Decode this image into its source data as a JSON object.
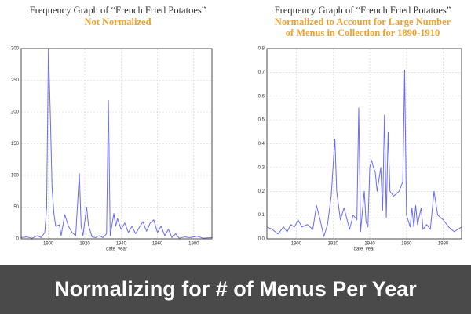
{
  "chart_data": [
    {
      "type": "line",
      "title": "Frequency Graph of “French Fried Potatoes”",
      "subtitle": [
        "Not Normalized"
      ],
      "x_label": "date_year",
      "color": "#6b6bf5",
      "x": [
        1885,
        1888,
        1891,
        1894,
        1896,
        1898,
        1899,
        1900,
        1901,
        1902,
        1903,
        1904,
        1906,
        1907,
        1909,
        1911,
        1913,
        1915,
        1917,
        1918,
        1919,
        1921,
        1922,
        1924,
        1926,
        1928,
        1930,
        1932,
        1933,
        1934,
        1936,
        1937,
        1938,
        1940,
        1942,
        1944,
        1946,
        1948,
        1950,
        1952,
        1954,
        1956,
        1958,
        1960,
        1962,
        1964,
        1966,
        1968,
        1970,
        1972,
        1975,
        1978,
        1982,
        1985,
        1990
      ],
      "values": [
        2,
        3,
        1,
        5,
        2,
        10,
        50,
        300,
        200,
        80,
        40,
        20,
        22,
        5,
        38,
        20,
        10,
        5,
        103,
        20,
        5,
        50,
        22,
        3,
        2,
        5,
        2,
        8,
        218,
        5,
        40,
        20,
        32,
        15,
        25,
        10,
        20,
        8,
        18,
        27,
        12,
        25,
        30,
        10,
        20,
        5,
        15,
        2,
        8,
        1,
        3,
        2,
        4,
        1,
        2
      ],
      "xlim": [
        1885,
        1990
      ],
      "xticks": [
        1900,
        1920,
        1940,
        1960,
        1980
      ],
      "ylim": [
        0,
        300
      ],
      "yticks": [
        0,
        50,
        100,
        150,
        200,
        250,
        300
      ],
      "grid": true
    },
    {
      "type": "line",
      "title": "Frequency Graph of “French Fried Potatoes”",
      "subtitle": [
        "Normalized to Account for Large Number",
        "of Menus in Collection for 1890-1910"
      ],
      "x_label": "date_year",
      "color": "#6b6bf5",
      "x": [
        1884,
        1887,
        1890,
        1893,
        1895,
        1897,
        1899,
        1901,
        1903,
        1906,
        1909,
        1911,
        1913,
        1915,
        1917,
        1919,
        1921,
        1922,
        1924,
        1926,
        1928,
        1929,
        1931,
        1933,
        1934,
        1935,
        1937,
        1938,
        1939,
        1940,
        1941,
        1942,
        1943,
        1944,
        1946,
        1947,
        1948,
        1949,
        1950,
        1951,
        1953,
        1956,
        1958,
        1959,
        1960,
        1962,
        1963,
        1964,
        1965,
        1966,
        1968,
        1969,
        1971,
        1973,
        1975,
        1977,
        1980,
        1983,
        1986,
        1990
      ],
      "values": [
        0.05,
        0.04,
        0.02,
        0.05,
        0.03,
        0.06,
        0.05,
        0.08,
        0.05,
        0.06,
        0.04,
        0.14,
        0.08,
        0.01,
        0.06,
        0.18,
        0.42,
        0.2,
        0.08,
        0.13,
        0.07,
        0.04,
        0.1,
        0.08,
        0.55,
        0.03,
        0.2,
        0.07,
        0.05,
        0.3,
        0.33,
        0.3,
        0.28,
        0.2,
        0.3,
        0.12,
        0.52,
        0.09,
        0.45,
        0.2,
        0.18,
        0.2,
        0.24,
        0.71,
        0.1,
        0.05,
        0.13,
        0.05,
        0.14,
        0.06,
        0.13,
        0.04,
        0.06,
        0.04,
        0.2,
        0.1,
        0.08,
        0.05,
        0.03,
        0.05
      ],
      "xlim": [
        1884,
        1990
      ],
      "xticks": [
        1900,
        1920,
        1940,
        1960,
        1980
      ],
      "ylim": [
        0,
        0.8
      ],
      "yticks": [
        {
          "value": 0,
          "label": "0.0"
        },
        0.1,
        0.2,
        0.3,
        0.4,
        0.5,
        0.6,
        0.7,
        0.8
      ],
      "grid": true
    }
  ],
  "banner": {
    "text": "Normalizing for # of Menus Per Year"
  }
}
